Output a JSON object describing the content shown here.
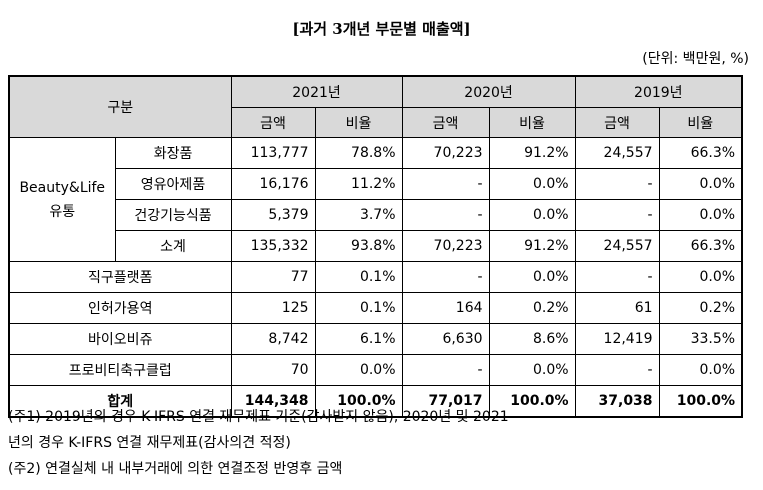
{
  "title": "[과거 3개년 부문별 매출액]",
  "unit": "(단위: 백만원, %)",
  "header": {
    "category": "구분",
    "years": [
      "2021년",
      "2020년",
      "2019년"
    ],
    "amount": "금액",
    "ratio": "비율"
  },
  "group_label_line1": "Beauty&Life",
  "group_label_line2": "유통",
  "rows": [
    {
      "label": "화장품",
      "v": [
        "113,777",
        "78.8%",
        "70,223",
        "91.2%",
        "24,557",
        "66.3%"
      ]
    },
    {
      "label": "영유아제품",
      "v": [
        "16,176",
        "11.2%",
        "-",
        "0.0%",
        "-",
        "0.0%"
      ]
    },
    {
      "label": "건강기능식품",
      "v": [
        "5,379",
        "3.7%",
        "-",
        "0.0%",
        "-",
        "0.0%"
      ]
    },
    {
      "label": "소계",
      "v": [
        "135,332",
        "93.8%",
        "70,223",
        "91.2%",
        "24,557",
        "66.3%"
      ]
    },
    {
      "label": "직구플랫폼",
      "v": [
        "77",
        "0.1%",
        "-",
        "0.0%",
        "-",
        "0.0%"
      ]
    },
    {
      "label": "인허가용역",
      "v": [
        "125",
        "0.1%",
        "164",
        "0.2%",
        "61",
        "0.2%"
      ]
    },
    {
      "label": "바이오비쥬",
      "v": [
        "8,742",
        "6.1%",
        "6,630",
        "8.6%",
        "12,419",
        "33.5%"
      ]
    },
    {
      "label": "프로비티축구클럽",
      "v": [
        "70",
        "0.0%",
        "-",
        "0.0%",
        "-",
        "0.0%"
      ]
    },
    {
      "label": "합계",
      "v": [
        "144,348",
        "100.0%",
        "77,017",
        "100.0%",
        "37,038",
        "100.0%"
      ]
    }
  ],
  "notes": [
    "(주1) 2019년의 경우 K-IFRS 연결 재무제표 기준(감사받지 않음), 2020년 및 2021",
    "년의 경우 K-IFRS 연결 재무제표(감사의견 적정)",
    "(주2) 연결실체 내 내부거래에 의한 연결조정 반영후 금액"
  ]
}
